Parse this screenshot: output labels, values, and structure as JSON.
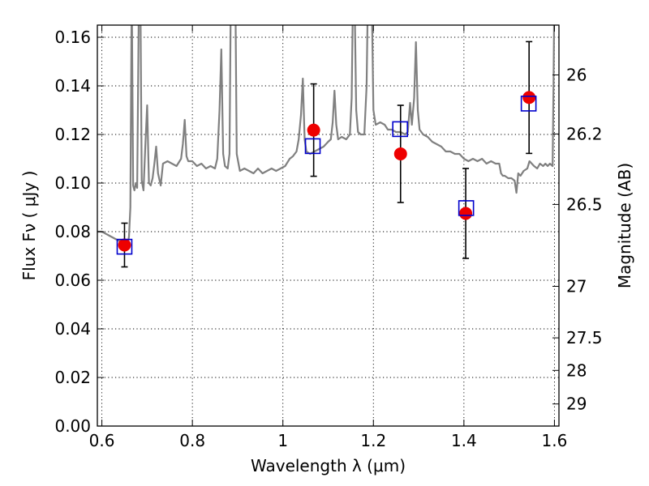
{
  "chart_data": {
    "type": "scatter",
    "xlabel": "Wavelength  λ (μm)",
    "ylabel": "Flux  Fν  ( μJy )",
    "y2label": "Magnitude (AB)",
    "xlim": [
      0.59,
      1.61
    ],
    "ylim": [
      0.0,
      0.165
    ],
    "grid": true,
    "x_ticks": [
      0.6,
      0.8,
      1.0,
      1.2,
      1.4,
      1.6
    ],
    "x_tick_labels": [
      "0.6",
      "0.8",
      "1",
      "1.2",
      "1.4",
      "1.6"
    ],
    "y_ticks": [
      0.0,
      0.02,
      0.04,
      0.06,
      0.08,
      0.1,
      0.12,
      0.14,
      0.16
    ],
    "y_tick_labels": [
      "0.00",
      "0.02",
      "0.04",
      "0.06",
      "0.08",
      "0.10",
      "0.12",
      "0.14",
      "0.16"
    ],
    "y2_ticks": [
      {
        "label": "26",
        "flux": 0.1445
      },
      {
        "label": "26.2",
        "flux": 0.1202
      },
      {
        "label": "26.5",
        "flux": 0.0912
      },
      {
        "label": "27",
        "flux": 0.0575
      },
      {
        "label": "27.5",
        "flux": 0.0363
      },
      {
        "label": "28",
        "flux": 0.0229
      },
      {
        "label": "29",
        "flux": 0.0091
      }
    ],
    "colors": {
      "spectrum": "#808080",
      "model_marker": "#0000cc",
      "observed_marker": "#ee0000",
      "errorbar": "#000000"
    },
    "series": [
      {
        "kind": "spectrum",
        "points": [
          [
            0.59,
            0.08
          ],
          [
            0.6,
            0.08
          ],
          [
            0.61,
            0.079
          ],
          [
            0.62,
            0.078
          ],
          [
            0.63,
            0.077
          ],
          [
            0.64,
            0.076
          ],
          [
            0.65,
            0.074
          ],
          [
            0.655,
            0.073
          ],
          [
            0.66,
            0.078
          ],
          [
            0.663,
            0.09
          ],
          [
            0.666,
            0.18
          ],
          [
            0.669,
            0.099
          ],
          [
            0.672,
            0.097
          ],
          [
            0.675,
            0.1
          ],
          [
            0.678,
            0.098
          ],
          [
            0.682,
            0.18
          ],
          [
            0.685,
            0.18
          ],
          [
            0.688,
            0.101
          ],
          [
            0.692,
            0.097
          ],
          [
            0.696,
            0.115
          ],
          [
            0.7,
            0.132
          ],
          [
            0.704,
            0.1
          ],
          [
            0.708,
            0.099
          ],
          [
            0.712,
            0.102
          ],
          [
            0.716,
            0.108
          ],
          [
            0.72,
            0.115
          ],
          [
            0.724,
            0.104
          ],
          [
            0.73,
            0.099
          ],
          [
            0.735,
            0.108
          ],
          [
            0.745,
            0.109
          ],
          [
            0.755,
            0.108
          ],
          [
            0.765,
            0.107
          ],
          [
            0.775,
            0.11
          ],
          [
            0.779,
            0.116
          ],
          [
            0.783,
            0.126
          ],
          [
            0.787,
            0.111
          ],
          [
            0.791,
            0.109
          ],
          [
            0.8,
            0.109
          ],
          [
            0.81,
            0.107
          ],
          [
            0.82,
            0.108
          ],
          [
            0.83,
            0.106
          ],
          [
            0.84,
            0.107
          ],
          [
            0.85,
            0.106
          ],
          [
            0.855,
            0.11
          ],
          [
            0.86,
            0.13
          ],
          [
            0.864,
            0.155
          ],
          [
            0.868,
            0.112
          ],
          [
            0.872,
            0.107
          ],
          [
            0.878,
            0.106
          ],
          [
            0.882,
            0.112
          ],
          [
            0.885,
            0.18
          ],
          [
            0.89,
            0.18
          ],
          [
            0.895,
            0.18
          ],
          [
            0.898,
            0.112
          ],
          [
            0.905,
            0.105
          ],
          [
            0.915,
            0.106
          ],
          [
            0.925,
            0.105
          ],
          [
            0.935,
            0.104
          ],
          [
            0.945,
            0.106
          ],
          [
            0.955,
            0.104
          ],
          [
            0.965,
            0.105
          ],
          [
            0.975,
            0.106
          ],
          [
            0.985,
            0.105
          ],
          [
            0.995,
            0.106
          ],
          [
            1.005,
            0.107
          ],
          [
            1.015,
            0.11
          ],
          [
            1.022,
            0.111
          ],
          [
            1.03,
            0.113
          ],
          [
            1.035,
            0.118
          ],
          [
            1.04,
            0.128
          ],
          [
            1.044,
            0.143
          ],
          [
            1.048,
            0.118
          ],
          [
            1.052,
            0.113
          ],
          [
            1.06,
            0.112
          ],
          [
            1.07,
            0.113
          ],
          [
            1.08,
            0.114
          ],
          [
            1.09,
            0.115
          ],
          [
            1.1,
            0.117
          ],
          [
            1.106,
            0.118
          ],
          [
            1.11,
            0.125
          ],
          [
            1.114,
            0.138
          ],
          [
            1.118,
            0.124
          ],
          [
            1.122,
            0.118
          ],
          [
            1.13,
            0.119
          ],
          [
            1.14,
            0.118
          ],
          [
            1.148,
            0.12
          ],
          [
            1.152,
            0.135
          ],
          [
            1.155,
            0.18
          ],
          [
            1.158,
            0.18
          ],
          [
            1.162,
            0.13
          ],
          [
            1.166,
            0.121
          ],
          [
            1.172,
            0.12
          ],
          [
            1.18,
            0.12
          ],
          [
            1.185,
            0.14
          ],
          [
            1.188,
            0.18
          ],
          [
            1.192,
            0.18
          ],
          [
            1.196,
            0.18
          ],
          [
            1.2,
            0.13
          ],
          [
            1.205,
            0.124
          ],
          [
            1.215,
            0.125
          ],
          [
            1.225,
            0.124
          ],
          [
            1.232,
            0.122
          ],
          [
            1.24,
            0.122
          ],
          [
            1.25,
            0.121
          ],
          [
            1.26,
            0.121
          ],
          [
            1.27,
            0.12
          ],
          [
            1.276,
            0.121
          ],
          [
            1.281,
            0.133
          ],
          [
            1.285,
            0.124
          ],
          [
            1.29,
            0.135
          ],
          [
            1.294,
            0.158
          ],
          [
            1.298,
            0.13
          ],
          [
            1.302,
            0.122
          ],
          [
            1.31,
            0.12
          ],
          [
            1.32,
            0.119
          ],
          [
            1.33,
            0.117
          ],
          [
            1.34,
            0.116
          ],
          [
            1.35,
            0.115
          ],
          [
            1.36,
            0.113
          ],
          [
            1.37,
            0.113
          ],
          [
            1.38,
            0.112
          ],
          [
            1.39,
            0.112
          ],
          [
            1.4,
            0.11
          ],
          [
            1.41,
            0.109
          ],
          [
            1.42,
            0.11
          ],
          [
            1.43,
            0.109
          ],
          [
            1.44,
            0.11
          ],
          [
            1.45,
            0.108
          ],
          [
            1.46,
            0.109
          ],
          [
            1.47,
            0.108
          ],
          [
            1.478,
            0.108
          ],
          [
            1.482,
            0.104
          ],
          [
            1.486,
            0.103
          ],
          [
            1.49,
            0.103
          ],
          [
            1.498,
            0.102
          ],
          [
            1.505,
            0.102
          ],
          [
            1.512,
            0.101
          ],
          [
            1.516,
            0.096
          ],
          [
            1.52,
            0.104
          ],
          [
            1.525,
            0.103
          ],
          [
            1.532,
            0.105
          ],
          [
            1.54,
            0.106
          ],
          [
            1.545,
            0.109
          ],
          [
            1.55,
            0.108
          ],
          [
            1.555,
            0.107
          ],
          [
            1.562,
            0.106
          ],
          [
            1.568,
            0.108
          ],
          [
            1.575,
            0.107
          ],
          [
            1.58,
            0.108
          ],
          [
            1.585,
            0.107
          ],
          [
            1.59,
            0.108
          ],
          [
            1.596,
            0.107
          ],
          [
            1.598,
            0.14
          ],
          [
            1.6,
            0.18
          ],
          [
            1.61,
            0.18
          ]
        ]
      },
      {
        "kind": "model",
        "points": [
          [
            0.65,
            0.0738
          ],
          [
            1.066,
            0.1152
          ],
          [
            1.259,
            0.1222
          ],
          [
            1.405,
            0.0897
          ],
          [
            1.543,
            0.1327
          ]
        ]
      },
      {
        "kind": "observed",
        "points": [
          {
            "x": 0.65,
            "y": 0.0745,
            "err": 0.009
          },
          {
            "x": 1.068,
            "y": 0.1218,
            "err": 0.019
          },
          {
            "x": 1.26,
            "y": 0.112,
            "err": 0.02
          },
          {
            "x": 1.404,
            "y": 0.0875,
            "err": 0.0185
          },
          {
            "x": 1.544,
            "y": 0.1352,
            "err": 0.023
          }
        ]
      }
    ]
  }
}
